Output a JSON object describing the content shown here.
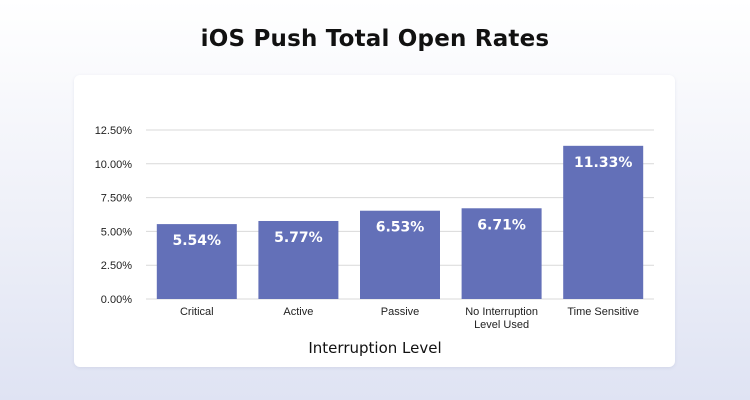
{
  "chart_data": {
    "type": "bar",
    "title": "iOS Push Total Open Rates",
    "xlabel": "Interruption Level",
    "ylabel": "",
    "categories": [
      [
        "Critical"
      ],
      [
        "Active"
      ],
      [
        "Passive"
      ],
      [
        "No Interruption",
        "Level Used"
      ],
      [
        "Time Sensitive"
      ]
    ],
    "values": [
      5.54,
      5.77,
      6.53,
      6.71,
      11.33
    ],
    "data_labels": [
      "5.54%",
      "5.77%",
      "6.53%",
      "6.71%",
      "11.33%"
    ],
    "ylim": [
      0,
      12.5
    ],
    "y_ticks": [
      0,
      2.5,
      5,
      7.5,
      10,
      12.5
    ],
    "y_tick_labels": [
      "0.00%",
      "2.50%",
      "5.00%",
      "7.50%",
      "10.00%",
      "12.50%"
    ],
    "grid": true,
    "legend": "none",
    "bar_color": "#6370b8",
    "grid_color": "#d9d9d9"
  }
}
